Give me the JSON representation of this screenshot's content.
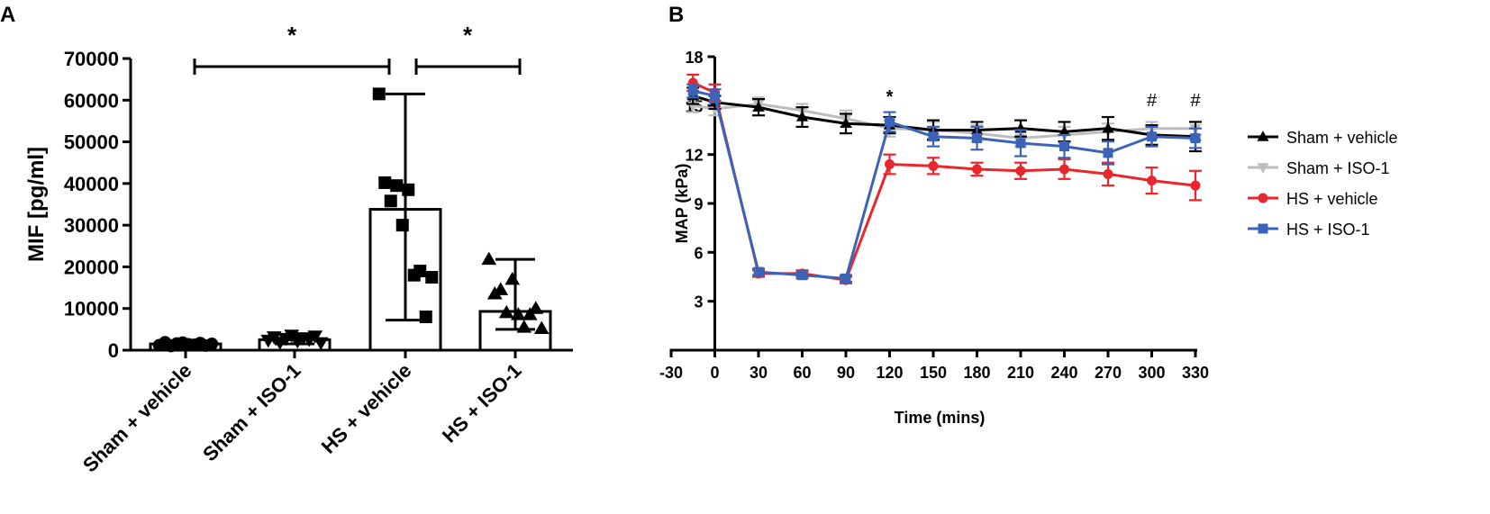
{
  "panels": {
    "a_label": "A",
    "b_label": "B"
  },
  "chart_data": [
    {
      "type": "bar",
      "panel": "A",
      "title": "",
      "xlabel": "",
      "ylabel": "MIF [pg/ml]",
      "ylim": [
        0,
        70000
      ],
      "yticks": [
        "0",
        "10000",
        "20000",
        "30000",
        "40000",
        "50000",
        "60000",
        "70000"
      ],
      "ytick_values": [
        0,
        10000,
        20000,
        30000,
        40000,
        50000,
        60000,
        70000
      ],
      "categories": [
        "Sham + vehicle",
        "Sham + ISO-1",
        "HS + vehicle",
        "HS + ISO-1"
      ],
      "values": [
        1500,
        2500,
        33800,
        9300
      ],
      "error_low": [
        900,
        1500,
        7200,
        5000
      ],
      "error_high": [
        2300,
        3800,
        61500,
        21800
      ],
      "markers": [
        "circle",
        "triangle-down",
        "square",
        "triangle-up"
      ],
      "points": [
        [
          1200,
          1900,
          1000,
          1600,
          1800,
          1400,
          1300,
          1700,
          1100,
          1500
        ],
        [
          2400,
          3200,
          1900,
          2800,
          3600,
          2200,
          3000,
          2600,
          3400,
          1800
        ],
        [
          61500,
          40200,
          35800,
          39500,
          30000,
          38500,
          18000,
          19000,
          8000,
          17500
        ],
        [
          21800,
          13500,
          14500,
          9000,
          17000,
          8500,
          5500,
          8500,
          10000,
          5200
        ]
      ],
      "significance": [
        {
          "from": "Sham + vehicle",
          "to": "HS + vehicle",
          "label": "*"
        },
        {
          "from": "HS + vehicle",
          "to": "HS + ISO-1",
          "label": "*"
        }
      ]
    },
    {
      "type": "line",
      "panel": "B",
      "title": "",
      "xlabel": "Time (mins)",
      "ylabel": "MAP (kPa)",
      "xlim": [
        -30,
        330
      ],
      "ylim": [
        0,
        18
      ],
      "xticks": [
        "-30",
        "0",
        "30",
        "60",
        "90",
        "120",
        "150",
        "180",
        "210",
        "240",
        "270",
        "300",
        "330"
      ],
      "xtick_values": [
        -30,
        0,
        30,
        60,
        90,
        120,
        150,
        180,
        210,
        240,
        270,
        300,
        330
      ],
      "yticks": [
        "3",
        "6",
        "9",
        "12",
        "15",
        "18"
      ],
      "ytick_values": [
        3,
        6,
        9,
        12,
        15,
        18
      ],
      "legend_position": "right",
      "series": [
        {
          "name": "Sham + vehicle",
          "color": "#000000",
          "marker": "triangle-up",
          "x": [
            -15,
            0,
            30,
            60,
            90,
            120,
            150,
            180,
            210,
            240,
            270,
            300,
            330
          ],
          "y": [
            15.6,
            15.2,
            14.9,
            14.3,
            13.9,
            13.8,
            13.5,
            13.5,
            13.6,
            13.4,
            13.6,
            13.2,
            13.1
          ],
          "err": [
            0.5,
            0.4,
            0.5,
            0.6,
            0.6,
            0.5,
            0.6,
            0.5,
            0.5,
            0.6,
            0.7,
            0.6,
            0.9
          ]
        },
        {
          "name": "Sham + ISO-1",
          "color": "#bdbdbd",
          "marker": "triangle-down",
          "x": [
            -15,
            0,
            30,
            60,
            90,
            120,
            150,
            180,
            210,
            240,
            270,
            300,
            330
          ],
          "y": [
            15.0,
            14.8,
            15.1,
            14.7,
            14.2,
            13.6,
            13.5,
            13.3,
            13.0,
            13.2,
            13.4,
            13.6,
            13.6
          ],
          "err": [
            0.4,
            0.4,
            0.4,
            0.4,
            0.5,
            0.5,
            0.5,
            0.5,
            0.5,
            0.5,
            0.5,
            0.4,
            0.4
          ]
        },
        {
          "name": "HS + vehicle",
          "color": "#e8262b",
          "marker": "circle",
          "x": [
            -15,
            0,
            30,
            60,
            90,
            120,
            150,
            180,
            210,
            240,
            270,
            300,
            330
          ],
          "y": [
            16.4,
            15.8,
            4.7,
            4.7,
            4.3,
            11.4,
            11.3,
            11.1,
            11.0,
            11.1,
            10.8,
            10.4,
            10.1
          ],
          "err": [
            0.5,
            0.5,
            0.2,
            0.2,
            0.2,
            0.6,
            0.5,
            0.4,
            0.5,
            0.6,
            0.7,
            0.8,
            0.9
          ]
        },
        {
          "name": "HS + ISO-1",
          "color": "#3b63b8",
          "marker": "square",
          "x": [
            -15,
            0,
            30,
            60,
            90,
            120,
            150,
            180,
            210,
            240,
            270,
            300,
            330
          ],
          "y": [
            15.9,
            15.6,
            4.8,
            4.6,
            4.4,
            14.0,
            13.1,
            13.0,
            12.7,
            12.5,
            12.1,
            13.1,
            13.0
          ],
          "err": [
            0.4,
            0.4,
            0.2,
            0.2,
            0.2,
            0.6,
            0.6,
            0.7,
            0.8,
            0.7,
            0.7,
            0.6,
            0.6
          ]
        }
      ],
      "annotations": [
        {
          "x": 120,
          "label": "*"
        },
        {
          "x": 300,
          "label": "#"
        },
        {
          "x": 330,
          "label": "#"
        }
      ]
    }
  ]
}
